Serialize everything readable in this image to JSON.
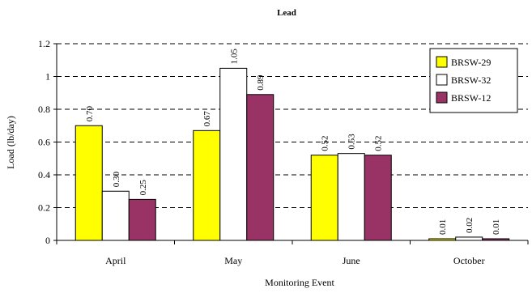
{
  "chart_data": {
    "type": "bar",
    "title": "Lead",
    "xlabel": "Monitoring Event",
    "ylabel": "Load (lb/day)",
    "categories": [
      "April",
      "May",
      "June",
      "October"
    ],
    "ylim": [
      0,
      1.2
    ],
    "yticks": [
      0,
      0.2,
      0.4,
      0.6,
      0.8,
      1,
      1.2
    ],
    "ytick_labels": [
      "0",
      "0.2",
      "0.4",
      "0.6",
      "0.8",
      "1",
      "1.2"
    ],
    "grid": "horizontal dashed",
    "legend_position": "top-right",
    "series": [
      {
        "name": "BRSW-29",
        "color": "#ffff00",
        "values": [
          0.7,
          0.67,
          0.52,
          0.01
        ],
        "labels": [
          "0.70",
          "0.67",
          "0.52",
          "0.01"
        ]
      },
      {
        "name": "BRSW-32",
        "color": "#ffffff",
        "values": [
          0.3,
          1.05,
          0.53,
          0.02
        ],
        "labels": [
          "0.30",
          "1.05",
          "0.53",
          "0.02"
        ]
      },
      {
        "name": "BRSW-12",
        "color": "#993366",
        "values": [
          0.25,
          0.89,
          0.52,
          0.01
        ],
        "labels": [
          "0.25",
          "0.89",
          "0.52",
          "0.01"
        ]
      }
    ]
  }
}
